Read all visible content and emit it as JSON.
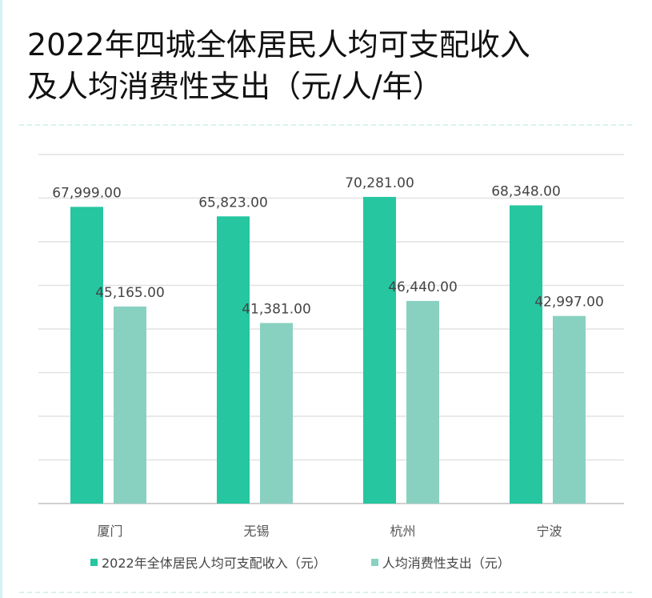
{
  "title_line1": "2022年四城全体居民人均可支配收入",
  "title_line2": "及人均消费性支出（元/人/年）",
  "chart_data": {
    "type": "bar",
    "title": "2022年四城全体居民人均可支配收入及人均消费性支出（元/人/年）",
    "categories": [
      "厦门",
      "无锡",
      "杭州",
      "宁波"
    ],
    "series": [
      {
        "name": "2022年全体居民人均可支配收入（元）",
        "color": "#26c6a0",
        "values": [
          67999,
          65823,
          70281,
          68348
        ],
        "labels": [
          "67,999.00",
          "65,823.00",
          "70,281.00",
          "68,348.00"
        ]
      },
      {
        "name": "人均消费性支出（元）",
        "color": "#88d1c0",
        "values": [
          45165,
          41381,
          46440,
          42997
        ],
        "labels": [
          "45,165.00",
          "41,381.00",
          "46,440.00",
          "42,997.00"
        ]
      }
    ],
    "ylim": [
      0,
      80000
    ],
    "ystep": 10000,
    "grid": true,
    "legend": "bottom",
    "xlabel": "",
    "ylabel": ""
  }
}
